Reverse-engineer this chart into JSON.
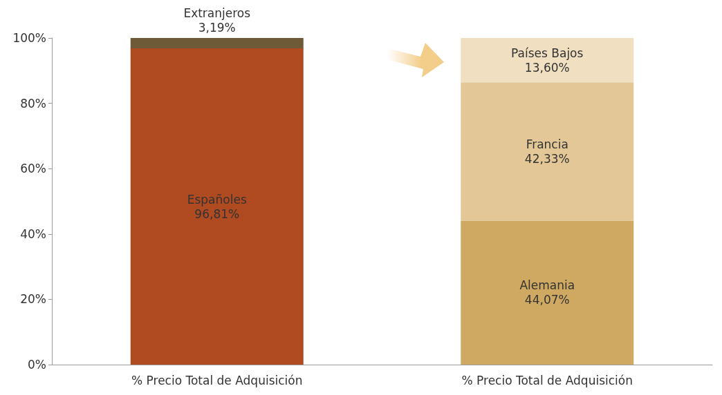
{
  "chart_data": {
    "type": "bar",
    "stacked": true,
    "categories": [
      "% Precio Total de Adquisición",
      "% Precio Total de Adquisición"
    ],
    "ylim": [
      0,
      100
    ],
    "yticks": [
      {
        "value": 0,
        "label": "0%"
      },
      {
        "value": 20,
        "label": "20%"
      },
      {
        "value": 40,
        "label": "40%"
      },
      {
        "value": 60,
        "label": "60%"
      },
      {
        "value": 80,
        "label": "80%"
      },
      {
        "value": 100,
        "label": "100%"
      }
    ],
    "grid": false,
    "legend": false,
    "series": [
      {
        "name": "Españoles",
        "color": "#b04a20",
        "values": [
          96.81,
          null
        ],
        "value_labels": [
          "96,81%",
          null
        ]
      },
      {
        "name": "Extranjeros",
        "color": "#6e5a36",
        "values": [
          3.19,
          null
        ],
        "value_labels": [
          "3,19%",
          null
        ]
      },
      {
        "name": "Alemania",
        "color": "#cfa862",
        "values": [
          null,
          44.07
        ],
        "value_labels": [
          null,
          "44,07%"
        ]
      },
      {
        "name": "Francia",
        "color": "#e3c796",
        "values": [
          null,
          42.33
        ],
        "value_labels": [
          null,
          "42,33%"
        ]
      },
      {
        "name": "Países Bajos",
        "color": "#f0dfc0",
        "values": [
          null,
          13.6
        ],
        "value_labels": [
          null,
          "13,60%"
        ]
      }
    ]
  }
}
